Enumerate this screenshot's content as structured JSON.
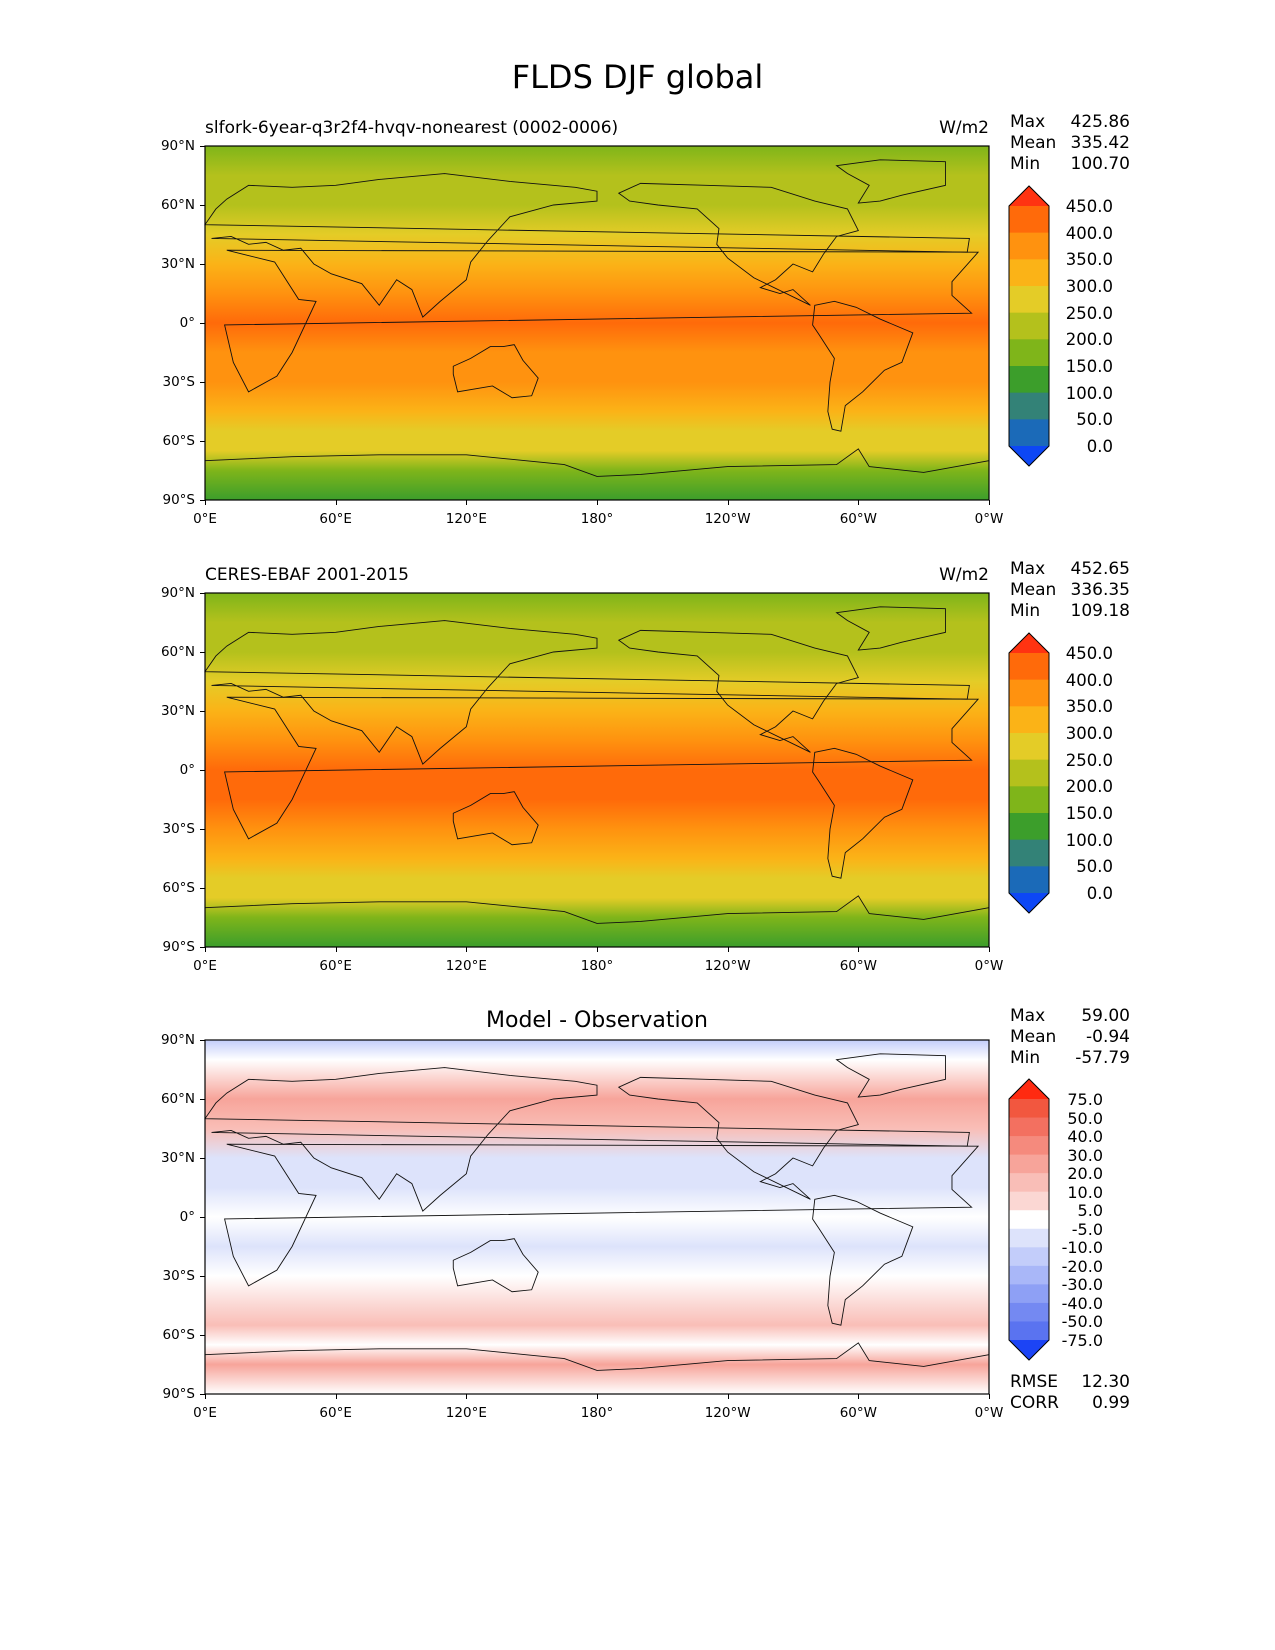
{
  "figure_title": "FLDS DJF global",
  "chart_data": [
    {
      "type": "heatmap",
      "title": "slfork-6year-q3r2f4-hvqv-nonearest (0002-0006)",
      "units": "W/m2",
      "stats": {
        "max_label": "Max",
        "max": "425.86",
        "mean_label": "Mean",
        "mean": "335.42",
        "min_label": "Min",
        "min": "100.70"
      },
      "x_ticks": [
        "0°E",
        "60°E",
        "120°E",
        "180°",
        "120°W",
        "60°W",
        "0°W"
      ],
      "y_ticks": [
        "90°N",
        "60°N",
        "30°N",
        "0°",
        "30°S",
        "60°S",
        "90°S"
      ],
      "colorbar": {
        "labels": [
          "450.0",
          "400.0",
          "350.0",
          "300.0",
          "250.0",
          "200.0",
          "150.0",
          "100.0",
          "50.0",
          "0.0"
        ],
        "colors": [
          "#ff3311",
          "#ff6a0a",
          "#ff920f",
          "#fbb317",
          "#e4cc27",
          "#b4c11c",
          "#7fb51a",
          "#3c9e2b",
          "#338277",
          "#1b6ab8",
          "#0d47f5"
        ]
      },
      "bands": [
        {
          "lat": 90,
          "value": 180
        },
        {
          "lat": 75,
          "value": 205
        },
        {
          "lat": 60,
          "value": 240
        },
        {
          "lat": 45,
          "value": 285
        },
        {
          "lat": 30,
          "value": 340
        },
        {
          "lat": 15,
          "value": 385
        },
        {
          "lat": 0,
          "value": 405
        },
        {
          "lat": -15,
          "value": 395
        },
        {
          "lat": -30,
          "value": 355
        },
        {
          "lat": -45,
          "value": 320
        },
        {
          "lat": -55,
          "value": 290
        },
        {
          "lat": -65,
          "value": 255
        },
        {
          "lat": -75,
          "value": 160
        },
        {
          "lat": -90,
          "value": 120
        }
      ]
    },
    {
      "type": "heatmap",
      "title": "CERES-EBAF 2001-2015",
      "units": "W/m2",
      "stats": {
        "max_label": "Max",
        "max": "452.65",
        "mean_label": "Mean",
        "mean": "336.35",
        "min_label": "Min",
        "min": "109.18"
      },
      "x_ticks": [
        "0°E",
        "60°E",
        "120°E",
        "180°",
        "120°W",
        "60°W",
        "0°W"
      ],
      "y_ticks": [
        "90°N",
        "60°N",
        "30°N",
        "0°",
        "30°S",
        "60°S",
        "90°S"
      ],
      "colorbar": {
        "labels": [
          "450.0",
          "400.0",
          "350.0",
          "300.0",
          "250.0",
          "200.0",
          "150.0",
          "100.0",
          "50.0",
          "0.0"
        ],
        "colors": [
          "#ff3311",
          "#ff6a0a",
          "#ff920f",
          "#fbb317",
          "#e4cc27",
          "#b4c11c",
          "#7fb51a",
          "#3c9e2b",
          "#338277",
          "#1b6ab8",
          "#0d47f5"
        ]
      },
      "bands": [
        {
          "lat": 90,
          "value": 175
        },
        {
          "lat": 75,
          "value": 200
        },
        {
          "lat": 60,
          "value": 235
        },
        {
          "lat": 45,
          "value": 290
        },
        {
          "lat": 30,
          "value": 345
        },
        {
          "lat": 15,
          "value": 390
        },
        {
          "lat": 0,
          "value": 410
        },
        {
          "lat": -15,
          "value": 400
        },
        {
          "lat": -30,
          "value": 360
        },
        {
          "lat": -45,
          "value": 325
        },
        {
          "lat": -55,
          "value": 290
        },
        {
          "lat": -65,
          "value": 255
        },
        {
          "lat": -75,
          "value": 155
        },
        {
          "lat": -90,
          "value": 130
        }
      ]
    },
    {
      "type": "heatmap",
      "title": "Model - Observation",
      "units": "",
      "stats": {
        "max_label": "Max",
        "max": "59.00",
        "mean_label": "Mean",
        "mean": "-0.94",
        "min_label": "Min",
        "min": "-57.79"
      },
      "footer_stats": {
        "rmse_label": "RMSE",
        "rmse": "12.30",
        "corr_label": "CORR",
        "corr": "0.99"
      },
      "x_ticks": [
        "0°E",
        "60°E",
        "120°E",
        "180°",
        "120°W",
        "60°W",
        "0°W"
      ],
      "y_ticks": [
        "90°N",
        "60°N",
        "30°N",
        "0°",
        "30°S",
        "60°S",
        "90°S"
      ],
      "colorbar": {
        "labels": [
          "75.0",
          "50.0",
          "40.0",
          "30.0",
          "20.0",
          "10.0",
          "5.0",
          "-5.0",
          "-10.0",
          "-20.0",
          "-30.0",
          "-40.0",
          "-50.0",
          "-75.0"
        ],
        "colors": [
          "#ff2a10",
          "#f2573f",
          "#f37060",
          "#f58a7d",
          "#f7a49a",
          "#f9beb7",
          "#fbd7d3",
          "#ffffff",
          "#dde3fb",
          "#c3cdfa",
          "#a9b7f8",
          "#8ea0f5",
          "#7489f2",
          "#5a73f0",
          "#1c44f5"
        ]
      },
      "bands": [
        {
          "lat": 90,
          "value": -12
        },
        {
          "lat": 80,
          "value": 4
        },
        {
          "lat": 60,
          "value": 22
        },
        {
          "lat": 45,
          "value": 14
        },
        {
          "lat": 30,
          "value": -8
        },
        {
          "lat": 15,
          "value": -6
        },
        {
          "lat": 0,
          "value": 0
        },
        {
          "lat": -15,
          "value": -9
        },
        {
          "lat": -30,
          "value": -5
        },
        {
          "lat": -45,
          "value": 8
        },
        {
          "lat": -55,
          "value": 14
        },
        {
          "lat": -65,
          "value": 4
        },
        {
          "lat": -75,
          "value": 20
        },
        {
          "lat": -90,
          "value": 0
        }
      ]
    }
  ]
}
